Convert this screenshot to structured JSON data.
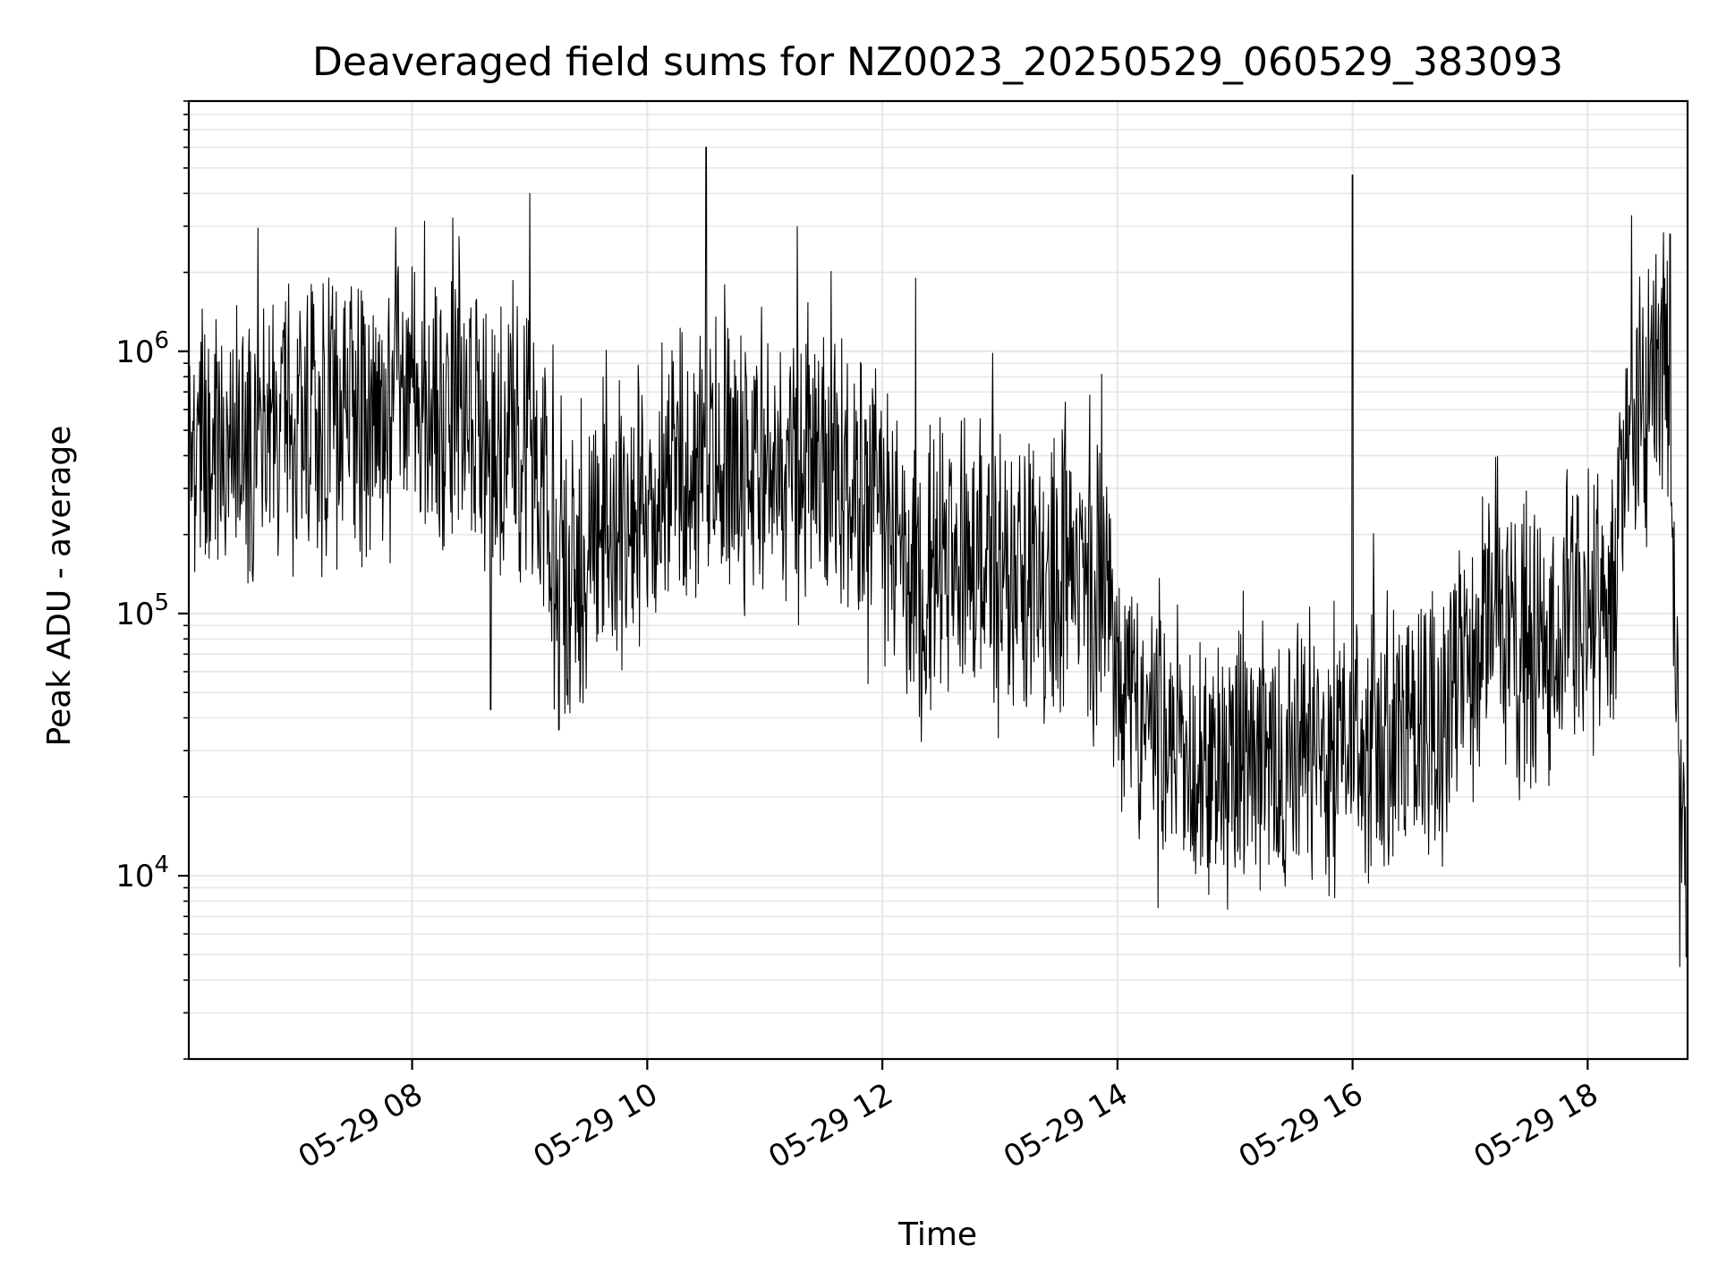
{
  "chart_data": {
    "type": "line",
    "title": "Deaveraged field sums for NZ0023_20250529_060529_383093",
    "xlabel": "Time",
    "ylabel": "Peak ADU - average",
    "yscale": "log",
    "xlim": [
      "05-29 06:06",
      "05-29 18:51"
    ],
    "ylim": [
      2000,
      9000000
    ],
    "grid": true,
    "line_color": "#000000",
    "grid_color": "#e6e6e6",
    "xticks": [
      {
        "value": "05-29 08:00",
        "label": "05-29 08"
      },
      {
        "value": "05-29 10:00",
        "label": "05-29 10"
      },
      {
        "value": "05-29 12:00",
        "label": "05-29 12"
      },
      {
        "value": "05-29 14:00",
        "label": "05-29 14"
      },
      {
        "value": "05-29 16:00",
        "label": "05-29 16"
      },
      {
        "value": "05-29 18:00",
        "label": "05-29 18"
      }
    ],
    "yticks": [
      {
        "value": 10000,
        "base": "10",
        "exp": "4"
      },
      {
        "value": 100000,
        "base": "10",
        "exp": "5"
      },
      {
        "value": 1000000,
        "base": "10",
        "exp": "6"
      }
    ],
    "series": [
      {
        "x": [
          "05-29 06:06",
          "05-29 06:30",
          "05-29 07:00",
          "05-29 07:30",
          "05-29 08:00",
          "05-29 08:30",
          "05-29 09:00",
          "05-29 09:15",
          "05-29 09:30",
          "05-29 10:00",
          "05-29 10:30",
          "05-29 11:00",
          "05-29 11:30",
          "05-29 12:00",
          "05-29 12:15",
          "05-29 12:30",
          "05-29 13:00",
          "05-29 13:30",
          "05-29 13:55",
          "05-29 14:05",
          "05-29 14:30",
          "05-29 15:00",
          "05-29 15:30",
          "05-29 16:00",
          "05-29 16:30",
          "05-29 16:50",
          "05-29 17:00",
          "05-29 17:30",
          "05-29 18:00",
          "05-29 18:10",
          "05-29 18:20",
          "05-29 18:30",
          "05-29 18:40",
          "05-29 18:45",
          "05-29 18:51"
        ],
        "y": [
          350000,
          450000,
          500000,
          550000,
          650000,
          550000,
          380000,
          130000,
          160000,
          300000,
          420000,
          380000,
          320000,
          280000,
          110000,
          180000,
          150000,
          140000,
          110000,
          50000,
          30000,
          28000,
          29000,
          32000,
          38000,
          45000,
          70000,
          70000,
          100000,
          90000,
          350000,
          600000,
          1000000,
          50000,
          10000
        ],
        "spikes": [
          {
            "x": "05-29 09:00",
            "y": 4000000
          },
          {
            "x": "05-29 10:30",
            "y": 6000000
          },
          {
            "x": "05-29 16:00",
            "y": 4700000
          },
          {
            "x": "05-29 18:42",
            "y": 2800000
          },
          {
            "x": "05-29 08:00",
            "y": 2100000
          },
          {
            "x": "05-29 12:17",
            "y": 1900000
          },
          {
            "x": "05-29 08:40",
            "y": 43000
          },
          {
            "x": "05-29 09:15",
            "y": 36000
          },
          {
            "x": "05-29 14:30",
            "y": 14500
          },
          {
            "x": "05-29 18:47",
            "y": 4500
          }
        ]
      }
    ]
  }
}
